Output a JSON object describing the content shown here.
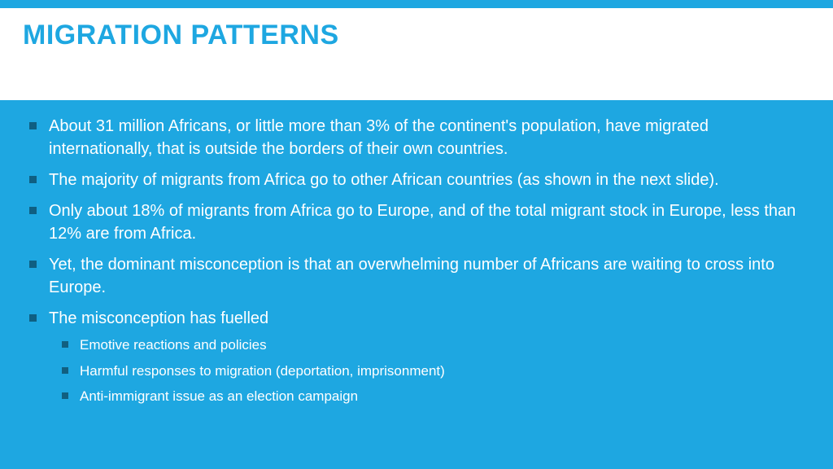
{
  "colors": {
    "accent": "#1ea7e1",
    "title_bg": "#ffffff",
    "content_bg": "#1ea7e1",
    "bullet_main": "#0f5f82",
    "bullet_sub": "#115f80",
    "text_body": "#ffffff"
  },
  "title": "MIGRATION PATTERNS",
  "typography": {
    "title_fontsize": 34,
    "body_fontsize": 20,
    "sub_fontsize": 17,
    "title_weight": 700
  },
  "bullets": [
    {
      "text": "About 31 million Africans, or little more than 3% of the continent's population, have migrated internationally, that is outside the borders of their own countries."
    },
    {
      "text": "The majority of migrants from Africa go to other African countries (as shown in the next slide)."
    },
    {
      "text": "Only about 18% of migrants from Africa go to Europe, and of the total migrant stock in Europe, less than 12% are from Africa."
    },
    {
      "text": "Yet, the dominant misconception is that an overwhelming number of Africans are waiting to cross into Europe."
    },
    {
      "text": "The misconception has fuelled",
      "sub": [
        "Emotive reactions and policies",
        "Harmful responses to migration (deportation, imprisonment)",
        "Anti-immigrant issue as an election campaign"
      ]
    }
  ]
}
